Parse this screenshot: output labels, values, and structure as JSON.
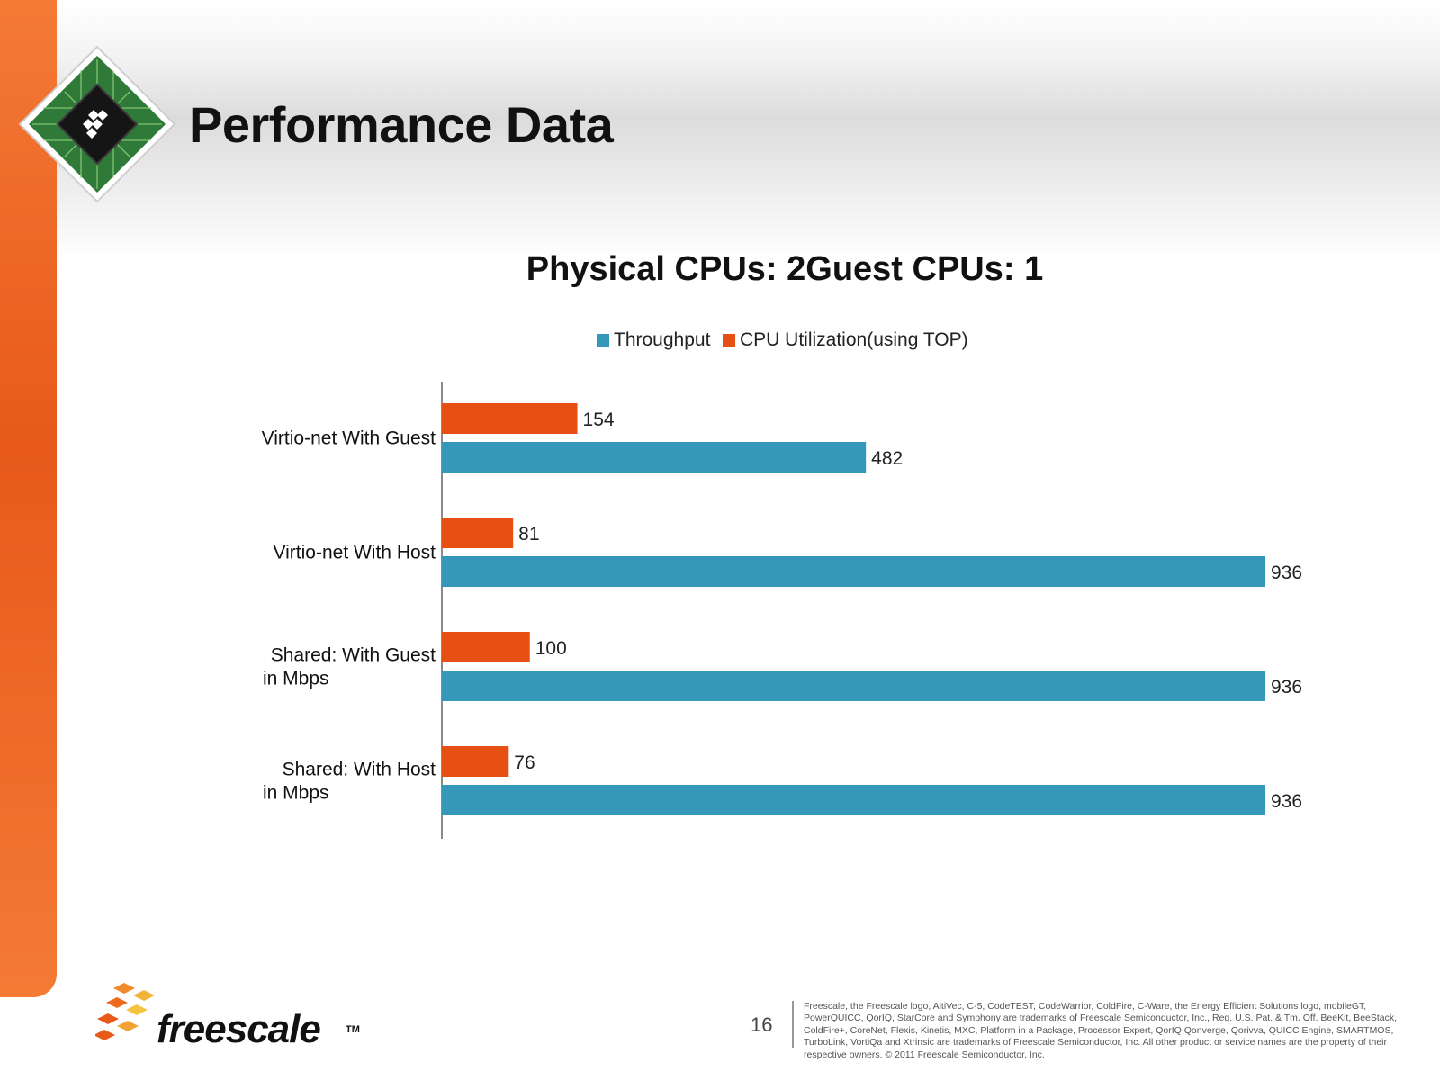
{
  "slide": {
    "title": "Performance Data",
    "page_number": "16",
    "brand": "freescale",
    "brand_tm": "TM",
    "legal": "Freescale, the Freescale logo, AltiVec, C-5, CodeTEST, CodeWarrior, ColdFire, C-Ware, the Energy Efficient Solutions logo, mobileGT, PowerQUICC, QorIQ, StarCore and Symphony are trademarks of Freescale Semiconductor, Inc., Reg. U.S. Pat. & Tm. Off. BeeKit, BeeStack, ColdFire+, CoreNet, Flexis, Kinetis, MXC, Platform in a Package, Processor Expert, QorIQ Qonverge, Qorivva, QUICC Engine, SMARTMOS, TurboLink, VortiQa and Xtrinsic are trademarks of Freescale Semiconductor, Inc. All other product or service names are the property of their respective owners. © 2011 Freescale Semiconductor, Inc."
  },
  "colors": {
    "orange_accent": "#e8591a",
    "throughput": "#3597ba",
    "cpu_utilization": "#e65013"
  },
  "icons": {
    "chip_logo": "freescale-chip-logo-icon",
    "brand_mark": "freescale-diamond-mark-icon"
  },
  "chart_data": {
    "type": "bar",
    "orientation": "horizontal",
    "title": "Physical CPUs: 2Guest CPUs: 1",
    "legend_position": "top",
    "grid": false,
    "categories": [
      [
        "Virtio-net With Guest"
      ],
      [
        "Virtio-net With Host"
      ],
      [
        "Shared: With Guest",
        "in Mbps"
      ],
      [
        "Shared: With  Host",
        "in Mbps"
      ]
    ],
    "series": [
      {
        "name": "CPU Utilization(using TOP)",
        "color": "#e65013",
        "values": [
          154,
          81,
          100,
          76
        ]
      },
      {
        "name": "Throughput",
        "color": "#3597ba",
        "values": [
          482,
          936,
          936,
          936
        ]
      }
    ],
    "legend_order": [
      "Throughput",
      "CPU Utilization(using TOP)"
    ],
    "xlim": [
      0,
      936
    ]
  }
}
